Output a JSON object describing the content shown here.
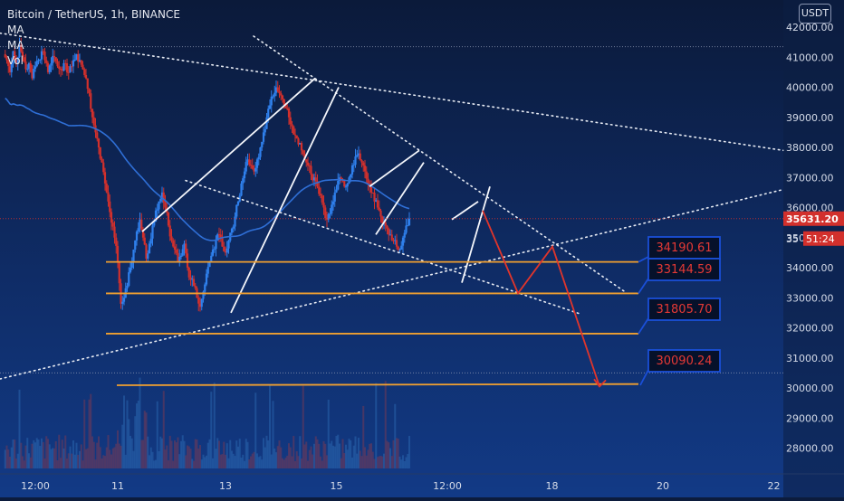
{
  "header": {
    "symbol": "Bitcoin / TetherUS, 1h, BINANCE",
    "indicators": [
      "MA",
      "MA",
      "Vol"
    ],
    "currency_button": "USDT"
  },
  "price_axis": {
    "current_price": "35631.20",
    "countdown_prefix": "35",
    "countdown": "51:24"
  },
  "annotations": [
    {
      "label": "34190.61",
      "price": 34190.61
    },
    {
      "label": "33144.59",
      "price": 33144.59
    },
    {
      "label": "31805.70",
      "price": 31805.7
    },
    {
      "label": "30090.24",
      "price": 30090.24
    }
  ],
  "colors": {
    "background_top": "#0b1a3a",
    "background_bottom": "#123a86",
    "bull": "#2f80ed",
    "bear": "#d2302c",
    "support_line": "#f0a030",
    "projection": "#e0352b",
    "ma_line": "#2f6fd6",
    "label_border": "#1a4fd8",
    "label_text": "#e53935"
  },
  "chart_data": {
    "type": "candlestick",
    "title": "Bitcoin / TetherUS, 1h, BINANCE",
    "y_axis": {
      "ticks": [
        42000,
        41000,
        40000,
        39000,
        38000,
        37000,
        36000,
        35000,
        34000,
        33000,
        32000,
        31000,
        30000,
        29000,
        28000
      ],
      "tick_labels": [
        "42000.00",
        "41000.00",
        "40000.00",
        "39000.00",
        "38000.00",
        "37000.00",
        "36000.00",
        "35000.00",
        "34000.00",
        "33000.00",
        "32000.00",
        "31000.00",
        "30000.00",
        "29000.00",
        "28000.00"
      ],
      "range": [
        27100,
        42300
      ]
    },
    "x_axis": {
      "ticks": [
        "12:00",
        "11",
        "13",
        "15",
        "12:00",
        "18",
        "20",
        "22"
      ],
      "tick_index": [
        10,
        36,
        70,
        105,
        140,
        173,
        208,
        243
      ]
    },
    "dotted_hlines": [
      41350,
      30500
    ],
    "current_price": 35631.2,
    "levels": [
      34190.61,
      33144.59,
      31805.7,
      30090.24
    ],
    "close_path": [
      40900,
      40500,
      41200,
      40800,
      41400,
      41000,
      40600,
      40800,
      40300,
      40700,
      40900,
      41200,
      40900,
      40500,
      40800,
      41000,
      40700,
      40600,
      40800,
      40500,
      40700,
      40900,
      41100,
      40900,
      40600,
      40300,
      39800,
      39000,
      38500,
      38000,
      37500,
      36800,
      36200,
      35500,
      35000,
      34200,
      32800,
      33000,
      33400,
      34000,
      34600,
      35200,
      35600,
      35000,
      34300,
      34800,
      35400,
      35900,
      36200,
      36500,
      36000,
      35400,
      34900,
      34600,
      34200,
      34400,
      34800,
      34000,
      33600,
      33400,
      33000,
      32700,
      33200,
      33800,
      34200,
      34600,
      34900,
      35100,
      34700,
      34500,
      34900,
      35300,
      35700,
      36200,
      36800,
      37200,
      37600,
      37400,
      37200,
      37600,
      38000,
      38500,
      39000,
      39400,
      39700,
      40000,
      39800,
      39600,
      39300,
      39000,
      38700,
      38400,
      38100,
      37900,
      37600,
      37400,
      37100,
      37000,
      36700,
      36400,
      36000,
      35600,
      35800,
      36200,
      36600,
      37000,
      36900,
      36700,
      37000,
      37400,
      37700,
      37800,
      37500,
      37200,
      36800,
      36500,
      36200,
      36000,
      35700,
      35500,
      35300,
      35100,
      34900,
      34700,
      34600,
      35000,
      35400,
      35631
    ]
  }
}
